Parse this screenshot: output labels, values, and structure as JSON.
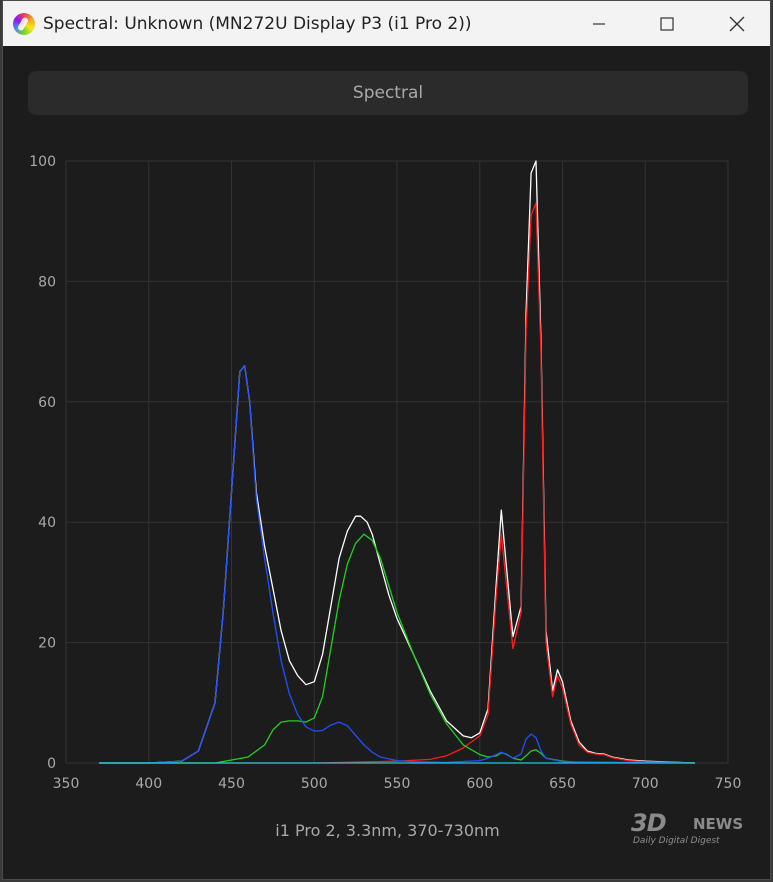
{
  "window": {
    "title": "Spectral: Unknown (MN272U Display P3 (i1 Pro 2))",
    "minimize_icon": "minimize-icon",
    "maximize_icon": "maximize-icon",
    "close_icon": "close-icon"
  },
  "header": {
    "label": "Spectral"
  },
  "footer": {
    "caption": "i1 Pro 2, 3.3nm, 370-730nm"
  },
  "watermark": {
    "logo": "3D",
    "news": "NEWS",
    "tagline": "Daily Digital Digest"
  },
  "colors": {
    "white": "#ffffff",
    "red": "#ff1a1a",
    "green": "#20d020",
    "blue": "#2050ff",
    "cyan": "#20c8d8",
    "grid": "#333333",
    "axis_text": "#a9a9a9"
  },
  "chart_data": {
    "type": "line",
    "title": "",
    "xlabel": "",
    "ylabel": "",
    "xlim": [
      350,
      750
    ],
    "ylim": [
      0,
      100
    ],
    "xticks": [
      350,
      400,
      450,
      500,
      550,
      600,
      650,
      700,
      750
    ],
    "yticks": [
      0,
      20,
      40,
      60,
      80,
      100
    ],
    "grid": true,
    "series": [
      {
        "color": "white",
        "x": [
          370,
          400,
          420,
          430,
          440,
          445,
          450,
          455,
          458,
          461,
          465,
          470,
          475,
          480,
          485,
          490,
          495,
          500,
          505,
          510,
          515,
          520,
          525,
          528,
          532,
          535,
          540,
          545,
          550,
          560,
          570,
          580,
          590,
          595,
          600,
          605,
          610,
          613,
          616,
          620,
          625,
          628,
          631,
          634,
          637,
          640,
          644,
          647,
          650,
          655,
          660,
          665,
          670,
          675,
          680,
          690,
          700,
          710,
          720,
          730
        ],
        "y": [
          0,
          0,
          0.3,
          2,
          10,
          25,
          45,
          65,
          66,
          60,
          45,
          36,
          29,
          22,
          17,
          14.5,
          13,
          13.5,
          18,
          26,
          34,
          38.5,
          41,
          41,
          40,
          38,
          33,
          28,
          24,
          18,
          12,
          7,
          4.5,
          4.2,
          5,
          9,
          30,
          42,
          33,
          21,
          26,
          75,
          98,
          100,
          70,
          22,
          12,
          15.5,
          13.5,
          7,
          3.5,
          2,
          1.6,
          1.5,
          1,
          0.5,
          0.3,
          0.2,
          0.1,
          0
        ]
      },
      {
        "color": "red",
        "x": [
          370,
          500,
          550,
          570,
          580,
          590,
          595,
          600,
          605,
          610,
          613,
          616,
          620,
          625,
          628,
          631,
          634,
          637,
          640,
          644,
          647,
          650,
          655,
          660,
          665,
          670,
          675,
          680,
          690,
          700,
          730
        ],
        "y": [
          0,
          0,
          0.3,
          0.6,
          1.2,
          2.5,
          3.5,
          4.5,
          8,
          28,
          38,
          30,
          19,
          25,
          72,
          91,
          93,
          68,
          20,
          11,
          14.5,
          12.5,
          6.5,
          3,
          1.8,
          1.5,
          1.4,
          0.9,
          0.4,
          0.2,
          0
        ]
      },
      {
        "color": "green",
        "x": [
          370,
          440,
          460,
          470,
          475,
          480,
          485,
          490,
          495,
          500,
          505,
          510,
          515,
          520,
          525,
          530,
          535,
          540,
          545,
          550,
          560,
          570,
          580,
          590,
          600,
          605,
          610,
          613,
          616,
          620,
          625,
          628,
          631,
          634,
          637,
          640,
          650,
          660,
          730
        ],
        "y": [
          0,
          0,
          1,
          3,
          5.5,
          6.8,
          7,
          7,
          6.8,
          7.5,
          11,
          19,
          27,
          33,
          36.5,
          38,
          37,
          34,
          29.5,
          25,
          18,
          11.5,
          6.5,
          3,
          1.4,
          1,
          1.2,
          1.7,
          1.5,
          0.8,
          0.5,
          1.2,
          2,
          2.2,
          1.6,
          0.8,
          0.3,
          0.1,
          0
        ]
      },
      {
        "color": "blue",
        "x": [
          370,
          400,
          420,
          430,
          440,
          445,
          450,
          455,
          458,
          461,
          465,
          470,
          475,
          480,
          485,
          490,
          495,
          500,
          505,
          510,
          515,
          520,
          525,
          530,
          535,
          540,
          550,
          560,
          580,
          600,
          605,
          610,
          613,
          616,
          620,
          625,
          628,
          631,
          634,
          637,
          640,
          650,
          730
        ],
        "y": [
          0,
          0,
          0.3,
          2,
          10,
          25,
          45,
          65,
          66,
          60,
          44,
          34,
          25,
          17,
          11.5,
          8,
          6,
          5.3,
          5.4,
          6.3,
          6.8,
          6.2,
          4.6,
          3,
          1.8,
          1,
          0.4,
          0.2,
          0.1,
          0.4,
          0.8,
          1.4,
          1.8,
          1.4,
          0.8,
          1.5,
          4,
          4.8,
          4.2,
          2,
          0.8,
          0.2,
          0
        ]
      },
      {
        "color": "cyan",
        "x": [
          370,
          730
        ],
        "y": [
          0,
          0
        ]
      }
    ]
  }
}
